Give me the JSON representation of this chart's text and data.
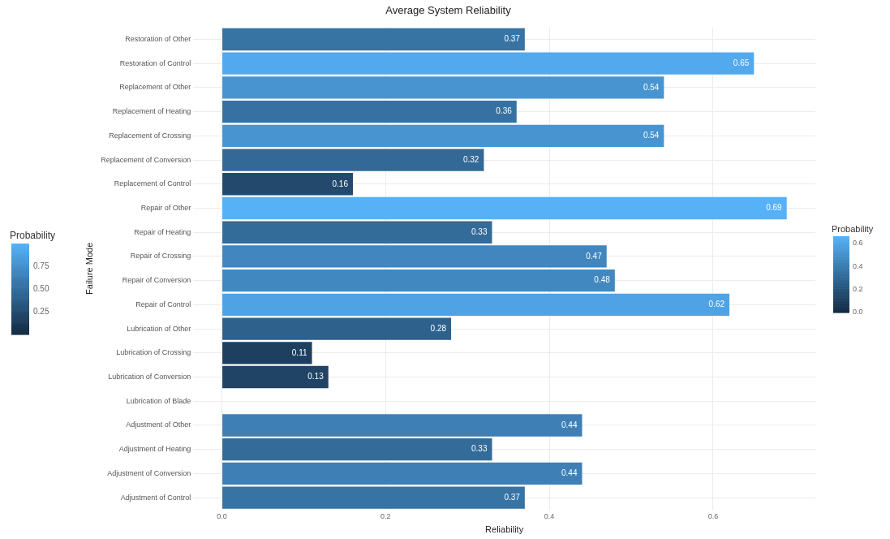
{
  "chart_data": [
    {
      "type": "bar",
      "orientation": "horizontal",
      "title": "Average System Reliability",
      "xlabel": "Reliability",
      "ylabel": "Failure Mode",
      "categories": [
        "Restoration of Other",
        "Restoration of Control",
        "Replacement of Other",
        "Replacement of Heating",
        "Replacement of Crossing",
        "Replacement of Conversion",
        "Replacement of Control",
        "Repair of Other",
        "Repair of Heating",
        "Repair of Crossing",
        "Repair of Conversion",
        "Repair of Control",
        "Lubrication of Other",
        "Lubrication of Crossing",
        "Lubrication of Conversion",
        "Lubrication of Blade",
        "Adjustment of Other",
        "Adjustment of Heating",
        "Adjustment of Conversion",
        "Adjustment of Control"
      ],
      "values": [
        0.37,
        0.65,
        0.54,
        0.36,
        0.54,
        0.32,
        0.16,
        0.69,
        0.33,
        0.47,
        0.48,
        0.62,
        0.28,
        0.11,
        0.13,
        null,
        0.44,
        0.33,
        0.44,
        0.37
      ],
      "colors": [
        "#3773a3",
        "#52a9ed",
        "#4794d0",
        "#3671a1",
        "#4794d0",
        "#326997",
        "#234a6d",
        "#56b1f7",
        "#336b99",
        "#4186be",
        "#4288c0",
        "#4fa3e5",
        "#2e618c",
        "#1e4060",
        "#204465",
        null,
        "#3e80b6",
        "#336b99",
        "#3e80b6",
        "#3773a3"
      ],
      "data_labels": true,
      "xlim": [
        -0.035,
        0.725
      ],
      "xticks": [
        {
          "value": 0,
          "label": "0.0"
        },
        0.2,
        0.4,
        0.6
      ],
      "grid": true,
      "clabel": "Probability",
      "clim": [
        0,
        0.66
      ],
      "cticks": [
        {
          "value": 0,
          "label": "0.0"
        },
        0.2,
        0.4,
        0.6
      ]
    },
    {
      "type": "other",
      "clabel": "Probability",
      "annotations": [
        "0.75",
        "0.50",
        "0.25"
      ]
    }
  ]
}
